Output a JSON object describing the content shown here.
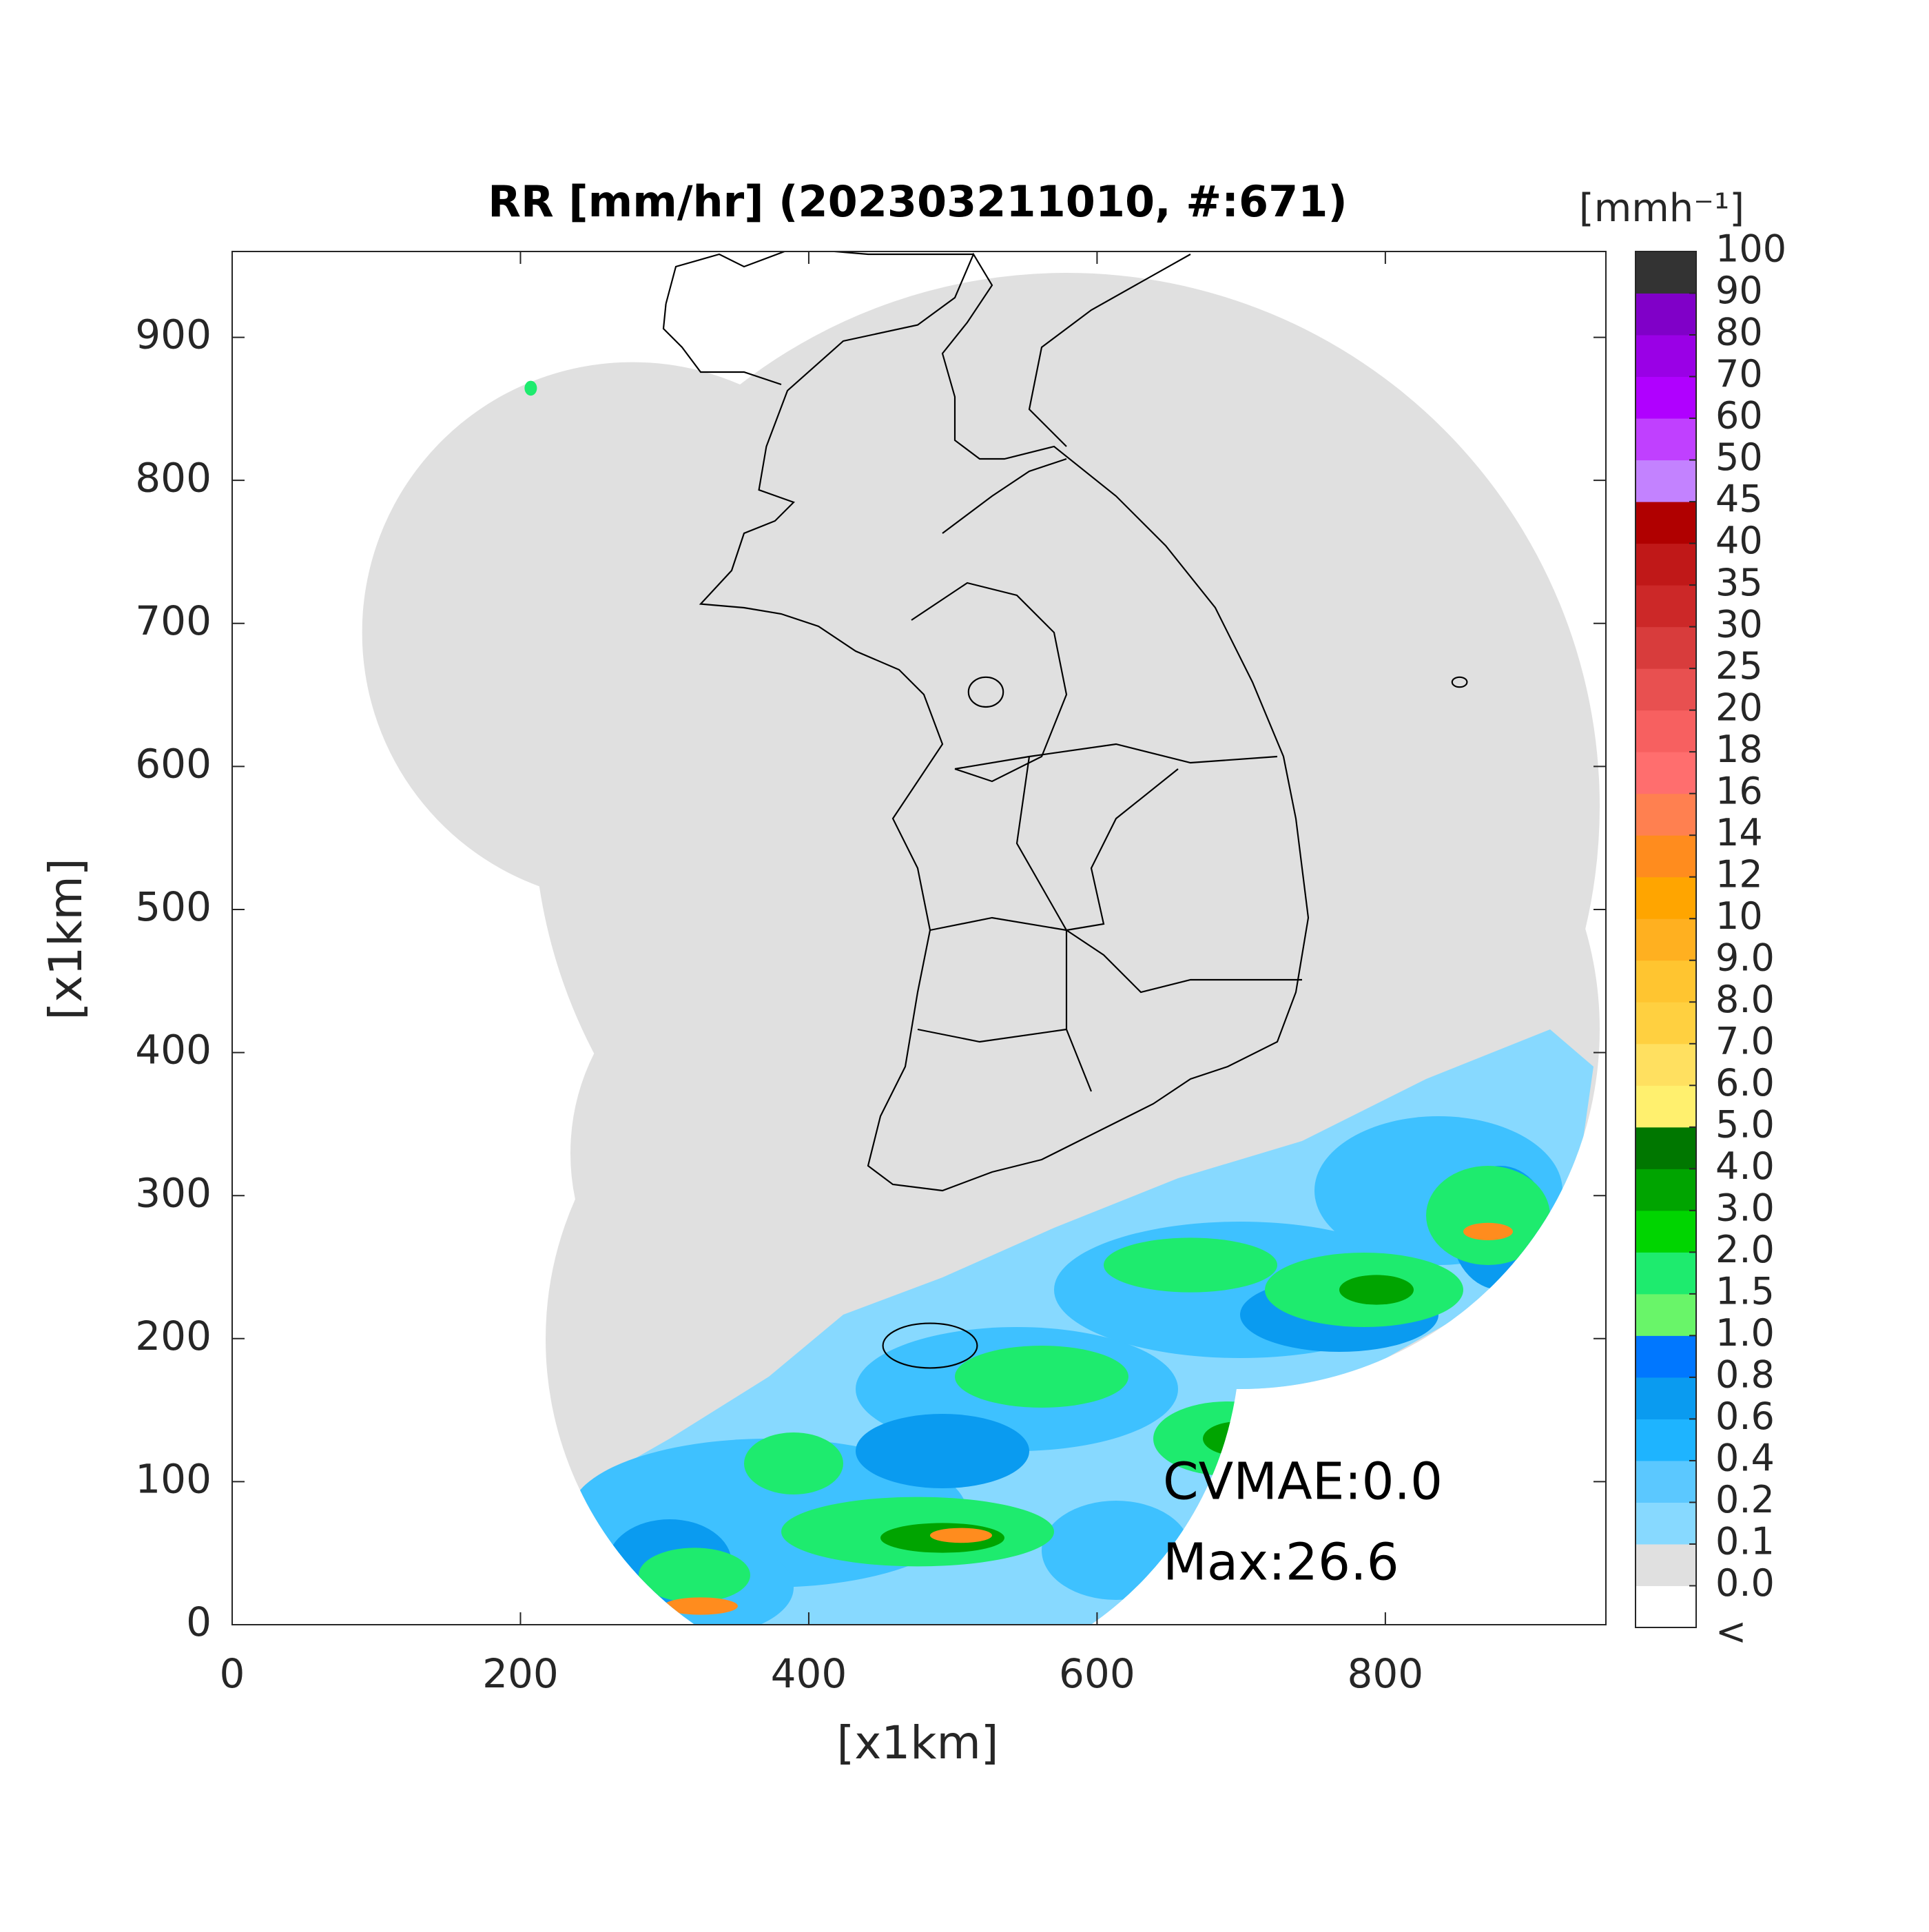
{
  "chart_data": {
    "type": "radar-map",
    "title": "RR [mm/hr] (202303211010, #:671)",
    "xlabel": "[x1km]",
    "ylabel": "[x1km]",
    "xlim": [
      0,
      953
    ],
    "ylim": [
      0,
      960
    ],
    "xticks": [
      0,
      200,
      400,
      600,
      800
    ],
    "yticks": [
      0,
      100,
      200,
      300,
      400,
      500,
      600,
      700,
      800,
      900
    ],
    "annotations": [
      "CVMAE:0.0",
      "Max:26.6"
    ],
    "colorbar": {
      "label": "[mmh⁻¹]",
      "under_label": "<",
      "under_color": "#ffffff",
      "ticks": [
        {
          "value": 0,
          "label": "0.0"
        },
        0.1,
        0.2,
        0.4,
        0.6,
        0.8,
        {
          "value": 1,
          "label": "1.0"
        },
        1.5,
        {
          "value": 2,
          "label": "2.0"
        },
        {
          "value": 3,
          "label": "3.0"
        },
        {
          "value": 4,
          "label": "4.0"
        },
        {
          "value": 5,
          "label": "5.0"
        },
        {
          "value": 6,
          "label": "6.0"
        },
        {
          "value": 7,
          "label": "7.0"
        },
        {
          "value": 8,
          "label": "8.0"
        },
        {
          "value": 9,
          "label": "9.0"
        },
        10,
        12,
        14,
        16,
        18,
        20,
        25,
        30,
        35,
        40,
        45,
        50,
        60,
        70,
        80,
        90,
        100
      ],
      "colors": [
        "#e0e0e0",
        "#87d9ff",
        "#5bc8ff",
        "#1eb4ff",
        "#0a9bf0",
        "#0077ff",
        "#69f569",
        "#1eeb6e",
        "#00d500",
        "#00a400",
        "#007700",
        "#fff06e",
        "#ffe060",
        "#ffd040",
        "#ffc530",
        "#ffb020",
        "#ffa500",
        "#ff8c1e",
        "#ff8050",
        "#ff6e6e",
        "#f76060",
        "#e85050",
        "#d83c3c",
        "#cc2828",
        "#c01818",
        "#b00000",
        "#c382ff",
        "#c040ff",
        "#b000ff",
        "#9a00e6",
        "#8000c8",
        "#333333"
      ]
    }
  }
}
